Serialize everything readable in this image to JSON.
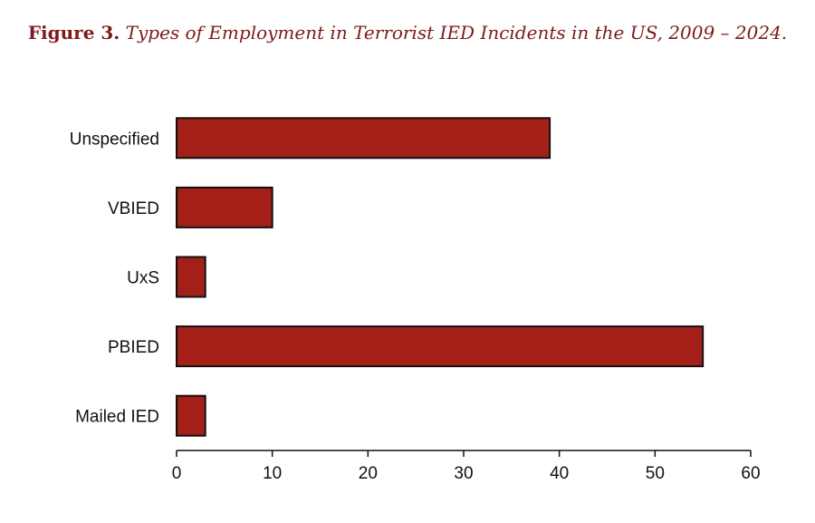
{
  "figure": {
    "label": "Figure 3.",
    "caption": "Types of Employment in Terrorist IED Incidents in the US, 2009 – 2024."
  },
  "colors": {
    "title": "#7d1a1a",
    "bar_fill": "#a31f17",
    "bar_stroke": "#111111",
    "axis": "#111111"
  },
  "chart_data": {
    "type": "bar",
    "orientation": "horizontal",
    "categories": [
      "Unspecified",
      "VBIED",
      "UxS",
      "PBIED",
      "Mailed IED"
    ],
    "values": [
      39,
      10,
      3,
      55,
      3
    ],
    "xlim": [
      0,
      60
    ],
    "xticks": [
      "0",
      "10",
      "20",
      "30",
      "40",
      "50",
      "60"
    ],
    "xlabel": "",
    "ylabel": "",
    "grid": false,
    "legend": "none"
  }
}
